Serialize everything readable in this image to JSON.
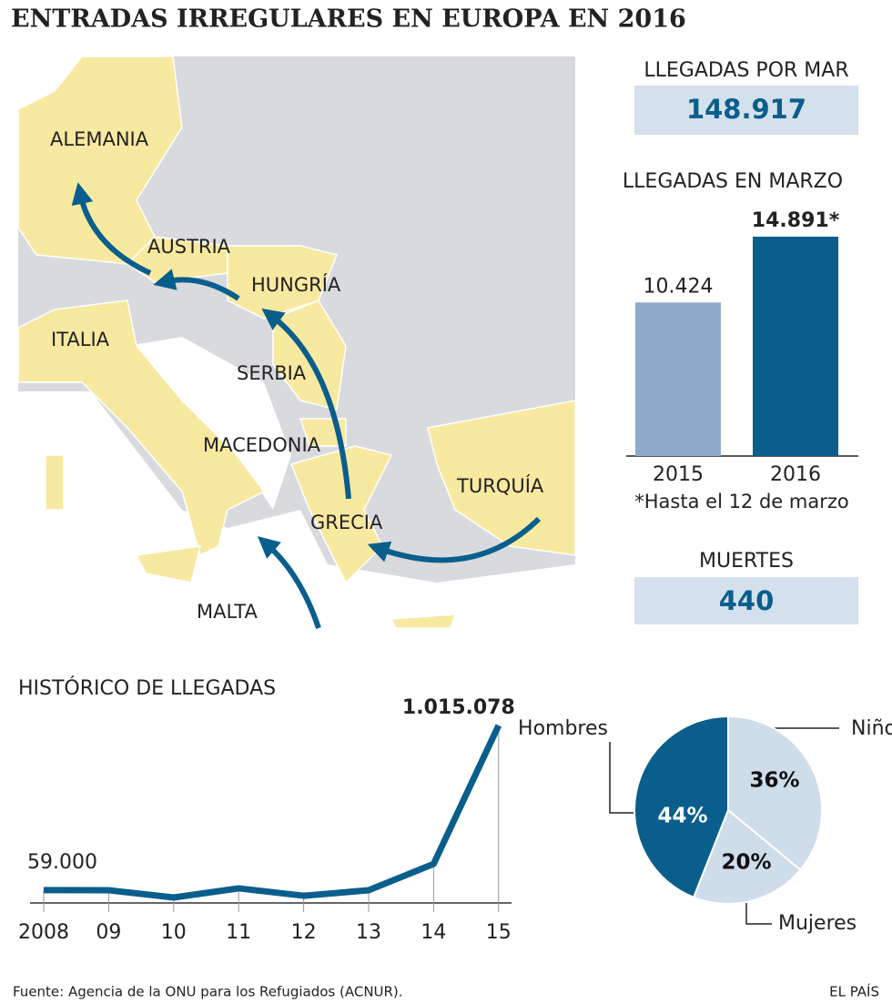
{
  "title": "ENTRADAS IRREGULARES EN EUROPA EN 2016",
  "map": {
    "labels": [
      "ALEMANIA",
      "AUSTRIA",
      "HUNGRÍA",
      "ITALIA",
      "SERBIA",
      "MACEDONIA",
      "GRECIA",
      "TURQUÍA",
      "MALTA"
    ]
  },
  "stats": [
    {
      "label": "LLEGADAS POR MAR",
      "value": "148.917"
    },
    {
      "label": "MUERTES",
      "value": "440"
    }
  ],
  "chart_data": [
    {
      "type": "bar",
      "title": "LLEGADAS EN MARZO",
      "categories": [
        "2015",
        "2016"
      ],
      "values": [
        10424,
        14891
      ],
      "value_labels": [
        "10.424",
        "14.891*"
      ],
      "colors": [
        "#8eaacb",
        "#0a5e8c"
      ],
      "note": "*Hasta el 12 de marzo"
    },
    {
      "type": "line",
      "title": "HISTÓRICO DE LLEGADAS",
      "categories": [
        "2008",
        "09",
        "10",
        "11",
        "12",
        "13",
        "14",
        "15"
      ],
      "values": [
        59000,
        58000,
        16000,
        69000,
        26000,
        58000,
        211000,
        1015078
      ],
      "value_labels": [
        "59.000",
        null,
        null,
        null,
        null,
        null,
        null,
        "1.015.078"
      ],
      "color": "#0a5e8c"
    },
    {
      "type": "pie",
      "categories": [
        "Niños",
        "Mujeres",
        "Hombres"
      ],
      "values": [
        36,
        20,
        44
      ],
      "value_labels": [
        "36%",
        "20%",
        "44%"
      ],
      "colors": [
        "#cfdcea",
        "#cfdcea",
        "#0a5e8c"
      ]
    }
  ],
  "source": "Fuente: Agencia de la ONU para los Refugiados (ACNUR).",
  "credit": "EL PAÍS"
}
